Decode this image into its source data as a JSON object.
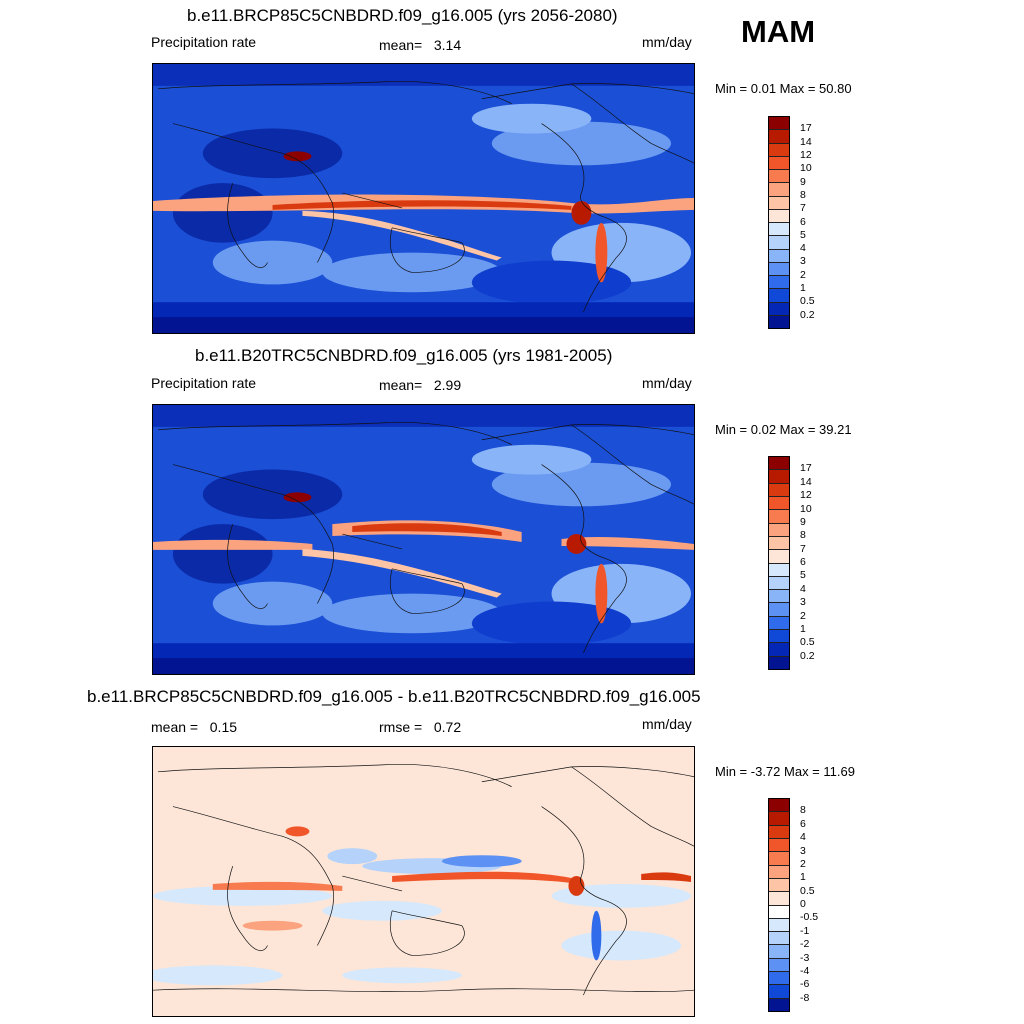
{
  "season": "MAM",
  "panels": [
    {
      "title": "b.e11.BRCP85C5CNBDRD.f09_g16.005 (yrs 2056-2080)",
      "left_label": "Precipitation rate",
      "stat1_label": "mean=",
      "stat1_value": "3.14",
      "units": "mm/day",
      "minmax": "Min =   0.01 Max =  50.80",
      "scale": "precip",
      "minmax_values": {
        "min": 0.01,
        "max": 50.8
      }
    },
    {
      "title": "b.e11.B20TRC5CNBDRD.f09_g16.005 (yrs 1981-2005)",
      "left_label": "Precipitation rate",
      "stat1_label": "mean=",
      "stat1_value": "2.99",
      "units": "mm/day",
      "minmax": "Min =   0.02 Max =  39.21",
      "scale": "precip",
      "minmax_values": {
        "min": 0.02,
        "max": 39.21
      }
    },
    {
      "title": "b.e11.BRCP85C5CNBDRD.f09_g16.005 - b.e11.B20TRC5CNBDRD.f09_g16.005",
      "left_label": "mean =",
      "left_value": "0.15",
      "stat1_label": "rmse =",
      "stat1_value": "0.72",
      "units": "mm/day",
      "minmax": "Min =  -3.72 Max =  11.69",
      "scale": "diff",
      "minmax_values": {
        "min": -3.72,
        "max": 11.69
      }
    }
  ],
  "colorbars": {
    "precip": {
      "labels": [
        "17",
        "14",
        "12",
        "10",
        "9",
        "8",
        "7",
        "6",
        "5",
        "4",
        "3",
        "2",
        "1",
        "0.5",
        "0.2"
      ],
      "colors": [
        "#8c0000",
        "#b81a00",
        "#d93a10",
        "#f0562a",
        "#f77b4f",
        "#fba27e",
        "#fdc5a6",
        "#fde6d8",
        "#d6e8fb",
        "#b4d2fa",
        "#8ab4f8",
        "#5d91f3",
        "#2f6bea",
        "#1048d8",
        "#0428b5",
        "#021491"
      ]
    },
    "diff": {
      "labels": [
        "8",
        "6",
        "4",
        "3",
        "2",
        "1",
        "0.5",
        "0",
        "-0.5",
        "-1",
        "-2",
        "-3",
        "-4",
        "-6",
        "-8"
      ],
      "colors": [
        "#8c0000",
        "#b81a00",
        "#d93a10",
        "#f0562a",
        "#f77b4f",
        "#fba27e",
        "#fdc5a6",
        "#fde6d8",
        "#ffffff",
        "#d6e8fb",
        "#b4d2fa",
        "#8ab4f8",
        "#5d91f3",
        "#2f6bea",
        "#1048d8",
        "#021491"
      ]
    }
  }
}
